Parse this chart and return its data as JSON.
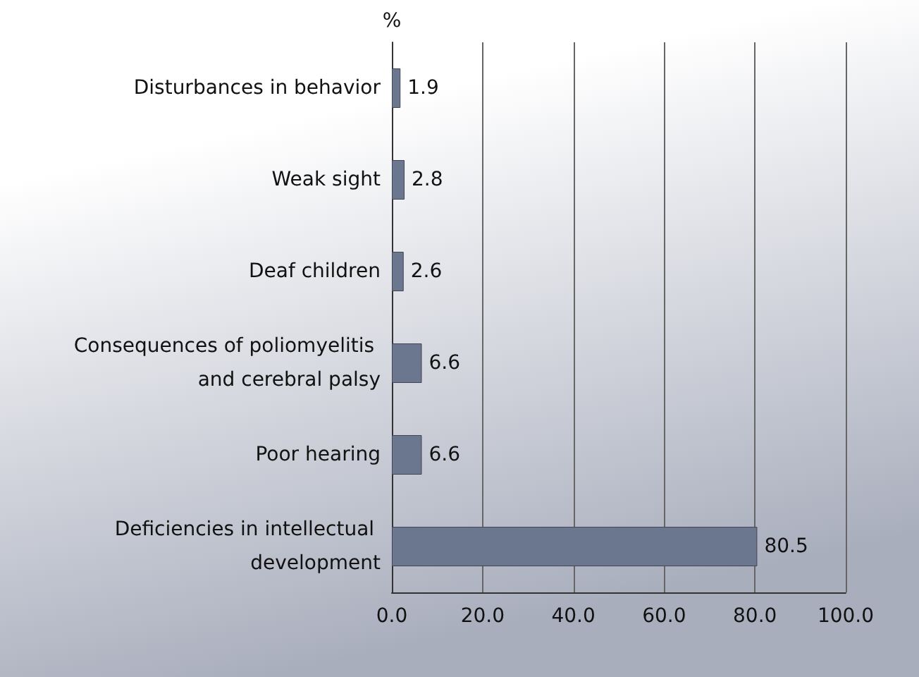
{
  "chart_data": {
    "type": "bar",
    "orientation": "horizontal",
    "xlabel": "%",
    "categories": [
      "Disturbances in behavior",
      "Weak sight",
      "Deaf children",
      "Consequences of poliomyelitis and cerebral palsy",
      "Poor hearing",
      "Deficiencies in intellectual development"
    ],
    "values": [
      1.9,
      2.8,
      2.6,
      6.6,
      6.6,
      80.5
    ],
    "color": "#6b778f",
    "data_labels": true,
    "xlim": [
      0,
      100
    ],
    "xticks": [
      {
        "value": 0,
        "label": "0.0"
      },
      {
        "value": 20,
        "label": "20.0"
      },
      {
        "value": 40,
        "label": "40.0"
      },
      {
        "value": 60,
        "label": "60.0"
      },
      {
        "value": 80,
        "label": "80.0"
      },
      {
        "value": 100,
        "label": "100.0"
      }
    ],
    "grid": "x"
  }
}
